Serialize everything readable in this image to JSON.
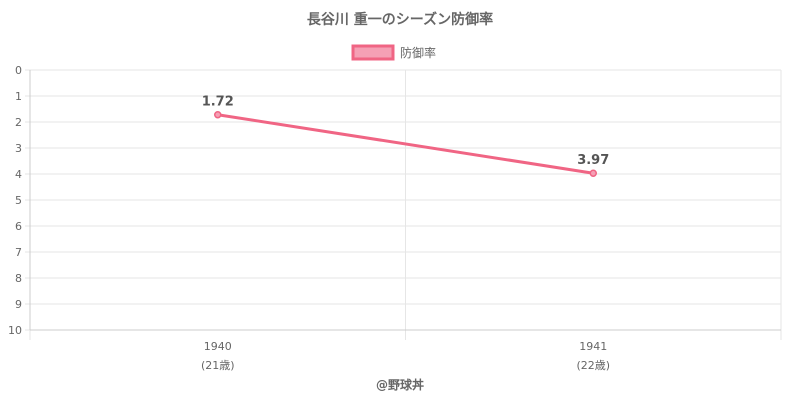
{
  "chart_data": {
    "type": "line",
    "title": "長谷川 重一のシーズン防御率",
    "legend": {
      "position": "top",
      "entries": [
        "防御率"
      ]
    },
    "categories": [
      {
        "year": "1940",
        "age": "(21歳)"
      },
      {
        "year": "1941",
        "age": "(22歳)"
      }
    ],
    "series": [
      {
        "name": "防御率",
        "values": [
          1.72,
          3.97
        ],
        "data_labels": [
          "1.72",
          "3.97"
        ]
      }
    ],
    "y_axis": {
      "reversed": true,
      "min": 0,
      "max": 10,
      "ticks": [
        "0",
        "1",
        "2",
        "3",
        "4",
        "5",
        "6",
        "7",
        "8",
        "9",
        "10"
      ]
    },
    "grid": true,
    "colors": {
      "line": "#f06584",
      "legend_fill": "#f5a0b5",
      "grid": "#e6e6e6",
      "text": "#666666"
    }
  },
  "credit": "@野球丼"
}
